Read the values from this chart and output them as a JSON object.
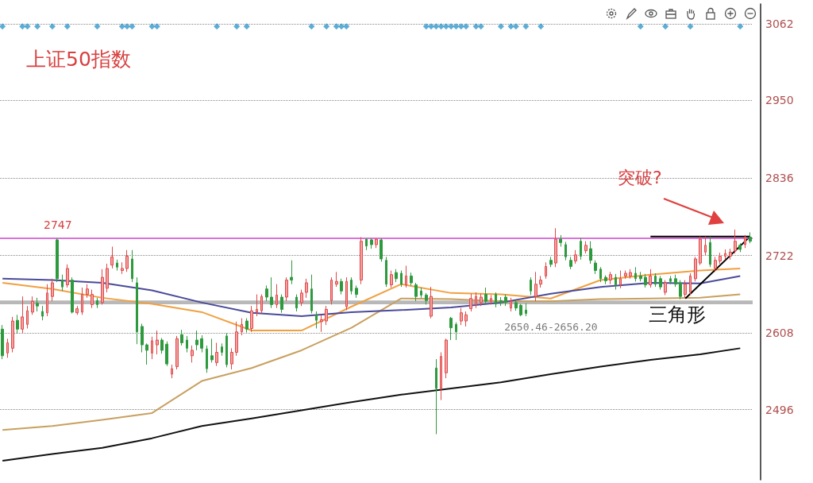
{
  "chart_data": {
    "type": "candlestick",
    "title": "上证50指数",
    "categories": [
      null,
      null,
      null,
      null,
      null,
      null,
      null,
      null,
      null,
      null,
      null,
      null,
      null,
      null,
      null,
      null,
      null,
      null,
      null,
      null,
      null,
      null,
      null,
      null,
      null,
      null,
      null,
      null,
      null,
      null,
      null,
      null,
      null,
      null,
      null,
      null,
      null,
      null,
      null,
      null,
      null,
      null,
      null,
      null,
      null,
      null,
      null,
      null,
      null,
      null,
      null,
      null,
      null,
      null,
      null,
      null,
      null,
      null,
      null,
      null,
      null,
      null,
      null,
      null,
      null,
      null,
      null,
      null,
      null,
      null,
      null,
      null,
      null,
      null,
      null,
      null,
      null,
      null,
      null,
      null,
      null,
      null,
      null,
      null,
      null,
      null,
      null,
      null,
      null,
      null,
      null,
      null,
      null,
      null,
      null,
      null,
      null,
      null,
      null,
      null,
      null,
      null,
      null,
      null,
      null,
      null,
      null,
      null,
      null,
      null,
      null,
      null,
      null,
      null,
      null,
      null,
      null,
      null,
      null,
      null,
      null,
      null,
      null,
      null,
      null,
      null,
      null,
      null,
      null,
      null,
      null,
      null,
      null,
      null,
      null,
      null,
      null,
      null,
      null,
      null,
      null,
      null,
      null,
      null,
      null,
      null,
      null,
      null,
      null,
      null,
      null
    ],
    "ohlc": [
      [
        2614,
        2620,
        2570,
        2575
      ],
      [
        2579,
        2600,
        2572,
        2594
      ],
      [
        2586,
        2632,
        2580,
        2626
      ],
      [
        2627,
        2635,
        2608,
        2614
      ],
      [
        2614,
        2662,
        2608,
        2632
      ],
      [
        2621,
        2648,
        2615,
        2641
      ],
      [
        2639,
        2662,
        2635,
        2655
      ],
      [
        2652,
        2660,
        2640,
        2648
      ],
      [
        2640,
        2648,
        2627,
        2633
      ],
      [
        2638,
        2680,
        2633,
        2667
      ],
      [
        2662,
        2688,
        2655,
        2682
      ],
      [
        2745,
        2747,
        2683,
        2688
      ],
      [
        2686,
        2694,
        2670,
        2676
      ],
      [
        2679,
        2709,
        2675,
        2703
      ],
      [
        2686,
        2690,
        2637,
        2639
      ],
      [
        2638,
        2648,
        2635,
        2644
      ],
      [
        2639,
        2675,
        2635,
        2665
      ],
      [
        2665,
        2680,
        2660,
        2673
      ],
      [
        2650,
        2672,
        2645,
        2665
      ],
      [
        2656,
        2660,
        2645,
        2650
      ],
      [
        2653,
        2702,
        2650,
        2690
      ],
      [
        2674,
        2710,
        2668,
        2703
      ],
      [
        2708,
        2735,
        2703,
        2720
      ],
      [
        2711,
        2716,
        2700,
        2705
      ],
      [
        2700,
        2712,
        2695,
        2703
      ],
      [
        2703,
        2730,
        2698,
        2721
      ],
      [
        2717,
        2730,
        2683,
        2688
      ],
      [
        2682,
        2690,
        2592,
        2610
      ],
      [
        2618,
        2622,
        2580,
        2591
      ],
      [
        2591,
        2593,
        2562,
        2583
      ],
      [
        2579,
        2603,
        2570,
        2597
      ],
      [
        2591,
        2612,
        2577,
        2598
      ],
      [
        2598,
        2601,
        2578,
        2583
      ],
      [
        2592,
        2596,
        2560,
        2563
      ],
      [
        2548,
        2562,
        2542,
        2556
      ],
      [
        2559,
        2604,
        2555,
        2600
      ],
      [
        2606,
        2613,
        2590,
        2594
      ],
      [
        2598,
        2604,
        2580,
        2586
      ],
      [
        2575,
        2590,
        2565,
        2583
      ],
      [
        2598,
        2612,
        2583,
        2591
      ],
      [
        2600,
        2605,
        2580,
        2586
      ],
      [
        2585,
        2590,
        2550,
        2556
      ],
      [
        2575,
        2600,
        2565,
        2569
      ],
      [
        2565,
        2594,
        2560,
        2580
      ],
      [
        2588,
        2593,
        2575,
        2580
      ],
      [
        2604,
        2608,
        2558,
        2562
      ],
      [
        2563,
        2586,
        2555,
        2580
      ],
      [
        2580,
        2625,
        2575,
        2610
      ],
      [
        2610,
        2630,
        2605,
        2621
      ],
      [
        2626,
        2630,
        2609,
        2614
      ],
      [
        2615,
        2648,
        2610,
        2641
      ],
      [
        2639,
        2665,
        2633,
        2643
      ],
      [
        2641,
        2665,
        2636,
        2662
      ],
      [
        2673,
        2678,
        2655,
        2661
      ],
      [
        2661,
        2690,
        2645,
        2650
      ],
      [
        2650,
        2680,
        2645,
        2664
      ],
      [
        2661,
        2665,
        2638,
        2643
      ],
      [
        2661,
        2690,
        2655,
        2686
      ],
      [
        2690,
        2715,
        2680,
        2686
      ],
      [
        2661,
        2665,
        2640,
        2645
      ],
      [
        2653,
        2672,
        2648,
        2667
      ],
      [
        2668,
        2688,
        2660,
        2682
      ],
      [
        2673,
        2694,
        2637,
        2641
      ],
      [
        2635,
        2640,
        2615,
        2627
      ],
      [
        2625,
        2635,
        2610,
        2628
      ],
      [
        2626,
        2648,
        2620,
        2643
      ],
      [
        2656,
        2690,
        2650,
        2686
      ],
      [
        2680,
        2698,
        2676,
        2684
      ],
      [
        2684,
        2688,
        2665,
        2670
      ],
      [
        2647,
        2690,
        2642,
        2684
      ],
      [
        2686,
        2690,
        2665,
        2670
      ],
      [
        2674,
        2678,
        2660,
        2665
      ],
      [
        2686,
        2749,
        2680,
        2743
      ],
      [
        2746,
        2747,
        2730,
        2736
      ],
      [
        2745,
        2747,
        2732,
        2738
      ],
      [
        2738,
        2747,
        2733,
        2746
      ],
      [
        2745,
        2747,
        2713,
        2717
      ],
      [
        2715,
        2720,
        2676,
        2680
      ],
      [
        2679,
        2700,
        2675,
        2694
      ],
      [
        2697,
        2702,
        2683,
        2688
      ],
      [
        2696,
        2700,
        2676,
        2680
      ],
      [
        2679,
        2707,
        2675,
        2692
      ],
      [
        2692,
        2697,
        2678,
        2682
      ],
      [
        2679,
        2682,
        2655,
        2662
      ],
      [
        2670,
        2675,
        2660,
        2664
      ],
      [
        2664,
        2667,
        2650,
        2656
      ],
      [
        2633,
        2676,
        2630,
        2662
      ],
      [
        2557,
        2570,
        2460,
        2527
      ],
      [
        2527,
        2580,
        2510,
        2574
      ],
      [
        2550,
        2600,
        2542,
        2598
      ],
      [
        2630,
        2632,
        2598,
        2616
      ],
      [
        2621,
        2624,
        2598,
        2610
      ],
      [
        2626,
        2645,
        2620,
        2638
      ],
      [
        2626,
        2640,
        2618,
        2635
      ],
      [
        2644,
        2666,
        2640,
        2659
      ],
      [
        2650,
        2668,
        2645,
        2662
      ],
      [
        2653,
        2666,
        2648,
        2661
      ],
      [
        2665,
        2675,
        2650,
        2655
      ],
      [
        2655,
        2664,
        2650,
        2659
      ],
      [
        2665,
        2668,
        2646,
        2651
      ],
      [
        2656,
        2661,
        2648,
        2653
      ],
      [
        2661,
        2665,
        2648,
        2653
      ],
      [
        2645,
        2660,
        2640,
        2655
      ],
      [
        2653,
        2656,
        2641,
        2645
      ],
      [
        2649,
        2651,
        2633,
        2635
      ],
      [
        2642,
        2652,
        2633,
        2637
      ],
      [
        2686,
        2690,
        2664,
        2670
      ],
      [
        2662,
        2698,
        2655,
        2680
      ],
      [
        2680,
        2692,
        2675,
        2686
      ],
      [
        2692,
        2712,
        2688,
        2706
      ],
      [
        2715,
        2720,
        2705,
        2709
      ],
      [
        2711,
        2762,
        2705,
        2746
      ],
      [
        2746,
        2752,
        2735,
        2741
      ],
      [
        2738,
        2742,
        2715,
        2720
      ],
      [
        2715,
        2720,
        2702,
        2706
      ],
      [
        2714,
        2730,
        2710,
        2723
      ],
      [
        2743,
        2748,
        2716,
        2721
      ],
      [
        2729,
        2743,
        2725,
        2737
      ],
      [
        2732,
        2743,
        2710,
        2715
      ],
      [
        2711,
        2715,
        2695,
        2700
      ],
      [
        2702,
        2705,
        2683,
        2688
      ],
      [
        2690,
        2693,
        2680,
        2685
      ],
      [
        2686,
        2698,
        2680,
        2694
      ],
      [
        2690,
        2695,
        2672,
        2679
      ],
      [
        2679,
        2700,
        2674,
        2688
      ],
      [
        2692,
        2700,
        2688,
        2696
      ],
      [
        2692,
        2702,
        2688,
        2697
      ],
      [
        2696,
        2705,
        2684,
        2688
      ],
      [
        2692,
        2698,
        2684,
        2688
      ],
      [
        2690,
        2695,
        2675,
        2679
      ],
      [
        2679,
        2702,
        2675,
        2692
      ],
      [
        2692,
        2696,
        2676,
        2680
      ],
      [
        2688,
        2692,
        2672,
        2676
      ],
      [
        2668,
        2686,
        2664,
        2682
      ],
      [
        2688,
        2692,
        2680,
        2684
      ],
      [
        2688,
        2694,
        2676,
        2680
      ],
      [
        2682,
        2686,
        2658,
        2662
      ],
      [
        2665,
        2686,
        2660,
        2680
      ],
      [
        2668,
        2696,
        2664,
        2692
      ],
      [
        2688,
        2720,
        2684,
        2717
      ],
      [
        2711,
        2750,
        2708,
        2746
      ],
      [
        2727,
        2750,
        2722,
        2737
      ],
      [
        2741,
        2750,
        2705,
        2709
      ],
      [
        2703,
        2720,
        2698,
        2715
      ],
      [
        2714,
        2726,
        2710,
        2721
      ],
      [
        2721,
        2731,
        2716,
        2725
      ],
      [
        2721,
        2732,
        2716,
        2727
      ],
      [
        2729,
        2760,
        2725,
        2743
      ],
      [
        2737,
        2740,
        2727,
        2731
      ],
      [
        2738,
        2752,
        2733,
        2749
      ],
      [
        2749,
        2756,
        2740,
        2743
      ]
    ],
    "series": [
      {
        "type": "line",
        "color": "#111111",
        "values": [
          2421,
          null,
          null,
          null,
          null,
          null,
          null,
          null,
          null,
          null,
          2431,
          null,
          null,
          null,
          null,
          null,
          null,
          null,
          null,
          null,
          2440,
          null,
          null,
          null,
          null,
          null,
          null,
          null,
          null,
          null,
          2454,
          null,
          null,
          null,
          null,
          null,
          null,
          null,
          null,
          null,
          2472,
          null,
          null,
          null,
          null,
          null,
          null,
          null,
          null,
          null,
          2483,
          null,
          null,
          null,
          null,
          null,
          null,
          null,
          null,
          null,
          2495,
          null,
          null,
          null,
          null,
          null,
          null,
          null,
          null,
          null,
          2507,
          null,
          null,
          null,
          null,
          null,
          null,
          null,
          null,
          null,
          2518,
          null,
          null,
          null,
          null,
          null,
          null,
          null,
          null,
          null,
          2527,
          null,
          null,
          null,
          null,
          null,
          null,
          null,
          null,
          null,
          2536,
          null,
          null,
          null,
          null,
          null,
          null,
          null,
          null,
          null,
          2548,
          null,
          null,
          null,
          null,
          null,
          null,
          null,
          null,
          null,
          2559,
          null,
          null,
          null,
          null,
          null,
          null,
          null,
          null,
          null,
          2569,
          null,
          null,
          null,
          null,
          null,
          null,
          null,
          null,
          null,
          2577,
          null,
          null,
          null,
          null,
          null,
          null,
          null,
          2586,
          null,
          null
        ]
      },
      {
        "type": "line",
        "color": "#c8a060",
        "values": [
          2466,
          null,
          null,
          null,
          null,
          null,
          null,
          null,
          null,
          null,
          2472,
          null,
          null,
          null,
          null,
          null,
          null,
          null,
          null,
          null,
          2481,
          null,
          null,
          null,
          null,
          null,
          null,
          null,
          null,
          null,
          2491,
          null,
          null,
          null,
          null,
          null,
          null,
          null,
          null,
          null,
          2538,
          null,
          null,
          null,
          null,
          null,
          null,
          null,
          null,
          null,
          2557,
          null,
          null,
          null,
          null,
          null,
          null,
          null,
          null,
          null,
          2583,
          null,
          null,
          null,
          null,
          null,
          null,
          null,
          null,
          null,
          2616,
          null,
          null,
          null,
          null,
          null,
          null,
          null,
          null,
          null,
          2659,
          null,
          null,
          null,
          null,
          null,
          null,
          null,
          null,
          null,
          2658,
          null,
          null,
          null,
          null,
          null,
          null,
          null,
          null,
          null,
          2655,
          null,
          null,
          null,
          null,
          null,
          null,
          null,
          null,
          null,
          2655,
          null,
          null,
          null,
          null,
          null,
          null,
          null,
          null,
          null,
          2658,
          null,
          null,
          null,
          null,
          null,
          null,
          null,
          null,
          null,
          2659,
          null,
          null,
          null,
          null,
          null,
          null,
          null,
          null,
          null,
          2660,
          null,
          null,
          null,
          null,
          null,
          null,
          null,
          2665,
          null,
          null
        ]
      },
      {
        "type": "line",
        "color": "#f0a040",
        "values": [
          2682,
          null,
          null,
          null,
          null,
          null,
          null,
          null,
          null,
          null,
          2673,
          null,
          null,
          null,
          null,
          null,
          null,
          null,
          null,
          null,
          2660,
          null,
          null,
          null,
          null,
          null,
          null,
          null,
          null,
          null,
          2651,
          null,
          null,
          null,
          null,
          null,
          null,
          null,
          null,
          null,
          2639,
          null,
          null,
          null,
          null,
          null,
          null,
          null,
          null,
          null,
          2612,
          null,
          null,
          null,
          null,
          null,
          null,
          null,
          null,
          null,
          2612,
          null,
          null,
          null,
          null,
          null,
          null,
          null,
          null,
          null,
          2647,
          null,
          null,
          null,
          null,
          null,
          null,
          null,
          null,
          null,
          2680,
          null,
          null,
          null,
          null,
          null,
          null,
          null,
          null,
          null,
          2667,
          null,
          null,
          null,
          null,
          null,
          null,
          null,
          null,
          null,
          2665,
          null,
          null,
          null,
          null,
          null,
          null,
          null,
          null,
          null,
          2659,
          null,
          null,
          null,
          null,
          null,
          null,
          null,
          null,
          null,
          2686,
          null,
          null,
          null,
          null,
          null,
          null,
          null,
          null,
          null,
          2694,
          null,
          null,
          null,
          null,
          null,
          null,
          null,
          null,
          null,
          2700,
          null,
          null,
          null,
          null,
          null,
          null,
          null,
          2703,
          null,
          null
        ]
      },
      {
        "type": "line",
        "color": "#4a4a9a",
        "values": [
          2688,
          null,
          null,
          null,
          null,
          null,
          null,
          null,
          null,
          null,
          2686,
          null,
          null,
          null,
          null,
          null,
          null,
          null,
          null,
          null,
          2682,
          null,
          null,
          null,
          null,
          null,
          null,
          null,
          null,
          null,
          2671,
          null,
          null,
          null,
          null,
          null,
          null,
          null,
          null,
          null,
          2653,
          null,
          null,
          null,
          null,
          null,
          null,
          null,
          null,
          null,
          2638,
          null,
          null,
          null,
          null,
          null,
          null,
          null,
          null,
          null,
          2633,
          null,
          null,
          null,
          null,
          null,
          null,
          null,
          null,
          null,
          2639,
          null,
          null,
          null,
          null,
          null,
          null,
          null,
          null,
          null,
          2642,
          null,
          null,
          null,
          null,
          null,
          null,
          null,
          null,
          null,
          2646,
          null,
          null,
          null,
          null,
          null,
          null,
          null,
          null,
          null,
          2653,
          null,
          null,
          null,
          null,
          null,
          null,
          null,
          null,
          null,
          2666,
          null,
          null,
          null,
          null,
          null,
          null,
          null,
          null,
          null,
          2676,
          null,
          null,
          null,
          null,
          null,
          null,
          null,
          null,
          null,
          2682,
          null,
          null,
          null,
          null,
          null,
          null,
          null,
          null,
          null,
          2681,
          null,
          null,
          null,
          null,
          null,
          null,
          null,
          2692,
          null,
          null
        ]
      },
      {
        "type": "line",
        "color": "#000000",
        "values": [
          null,
          null,
          null,
          null,
          null,
          null,
          null,
          null,
          null,
          null,
          null,
          null,
          null,
          null,
          null,
          null,
          null,
          null,
          null,
          null,
          null,
          null,
          null,
          null,
          null,
          null,
          null,
          null,
          null,
          null,
          null,
          null,
          null,
          null,
          null,
          null,
          null,
          null,
          null,
          null,
          null,
          null,
          null,
          null,
          null,
          null,
          null,
          null,
          null,
          null,
          null,
          null,
          null,
          null,
          null,
          null,
          null,
          null,
          null,
          null,
          null,
          null,
          null,
          null,
          null,
          null,
          null,
          null,
          null,
          null,
          null,
          null,
          null,
          null,
          null,
          null,
          null,
          null,
          null,
          null,
          null,
          null,
          null,
          null,
          null,
          null,
          null,
          null,
          null,
          null,
          null,
          null,
          null,
          null,
          null,
          null,
          null,
          null,
          null,
          null,
          null,
          null,
          null,
          null,
          null,
          null,
          null,
          null,
          null,
          null,
          null,
          null,
          null,
          null,
          null,
          null,
          null,
          null,
          null,
          null,
          null,
          null,
          null,
          null,
          null,
          null,
          null,
          null,
          null,
          null,
          2750,
          null,
          null,
          null,
          null,
          null,
          null,
          null,
          null,
          null,
          null,
          null,
          null,
          null,
          null,
          null,
          null,
          null,
          null,
          null,
          2750
        ]
      },
      {
        "type": "line",
        "color": "#000000",
        "values": [
          null,
          null,
          null,
          null,
          null,
          null,
          null,
          null,
          null,
          null,
          null,
          null,
          null,
          null,
          null,
          null,
          null,
          null,
          null,
          null,
          null,
          null,
          null,
          null,
          null,
          null,
          null,
          null,
          null,
          null,
          null,
          null,
          null,
          null,
          null,
          null,
          null,
          null,
          null,
          null,
          null,
          null,
          null,
          null,
          null,
          null,
          null,
          null,
          null,
          null,
          null,
          null,
          null,
          null,
          null,
          null,
          null,
          null,
          null,
          null,
          null,
          null,
          null,
          null,
          null,
          null,
          null,
          null,
          null,
          null,
          null,
          null,
          null,
          null,
          null,
          null,
          null,
          null,
          null,
          null,
          null,
          null,
          null,
          null,
          null,
          null,
          null,
          null,
          null,
          null,
          null,
          null,
          null,
          null,
          null,
          null,
          null,
          null,
          null,
          null,
          null,
          null,
          null,
          null,
          null,
          null,
          null,
          null,
          null,
          null,
          null,
          null,
          null,
          null,
          null,
          null,
          null,
          null,
          null,
          null,
          null,
          null,
          null,
          null,
          null,
          null,
          null,
          null,
          null,
          null,
          null,
          null,
          null,
          null,
          null,
          null,
          null,
          2659,
          null,
          null,
          null,
          null,
          null,
          null,
          null,
          null,
          null,
          null,
          null,
          null,
          2750
        ]
      },
      {
        "type": "scatter",
        "marker": "diamond",
        "color": "#3399cc",
        "values": [
          3058,
          null,
          null,
          null,
          3058,
          3058,
          null,
          3058,
          null,
          null,
          3058,
          null,
          null,
          3058,
          null,
          null,
          null,
          null,
          null,
          3058,
          null,
          null,
          null,
          null,
          3058,
          3058,
          3058,
          null,
          null,
          null,
          3058,
          3058,
          null,
          null,
          null,
          null,
          null,
          null,
          null,
          null,
          null,
          null,
          null,
          3058,
          null,
          null,
          null,
          3058,
          null,
          3058,
          null,
          null,
          null,
          null,
          null,
          null,
          null,
          null,
          null,
          null,
          null,
          null,
          3058,
          null,
          null,
          3058,
          null,
          3058,
          3058,
          3058,
          null,
          null,
          null,
          null,
          null,
          null,
          null,
          null,
          null,
          null,
          null,
          null,
          null,
          null,
          null,
          3058,
          3058,
          3058,
          3058,
          3058,
          3058,
          3058,
          3058,
          3058,
          null,
          3058,
          3058,
          null,
          null,
          null,
          3058,
          null,
          3058,
          3058,
          null,
          3058,
          null,
          null,
          3058,
          null,
          null,
          null,
          null,
          null,
          null,
          null,
          null,
          null,
          null,
          null,
          null,
          null,
          null,
          null,
          null,
          null,
          null,
          null,
          3058,
          null,
          null,
          null,
          null,
          3058,
          null,
          null,
          null,
          null,
          3058,
          null,
          null,
          null,
          null,
          null,
          null,
          null,
          null,
          null,
          3058,
          null,
          null
        ]
      }
    ],
    "ylim": [
      2393,
      3091
    ],
    "yticks": [
      2496,
      2608,
      2722,
      2836,
      2950,
      3062
    ],
    "grid": "y",
    "tick_labels": "y",
    "ref_lines": [
      {
        "axis": "y",
        "value": 2747,
        "label": "2747",
        "color": "#cc44cc"
      }
    ],
    "bands": [
      {
        "axis": "y",
        "from": 2650.46,
        "to": 2656.2,
        "label": "2650.46-2656.20",
        "color": "#b8b8b8"
      }
    ],
    "annotations": [
      "突破?",
      "三角形"
    ]
  }
}
